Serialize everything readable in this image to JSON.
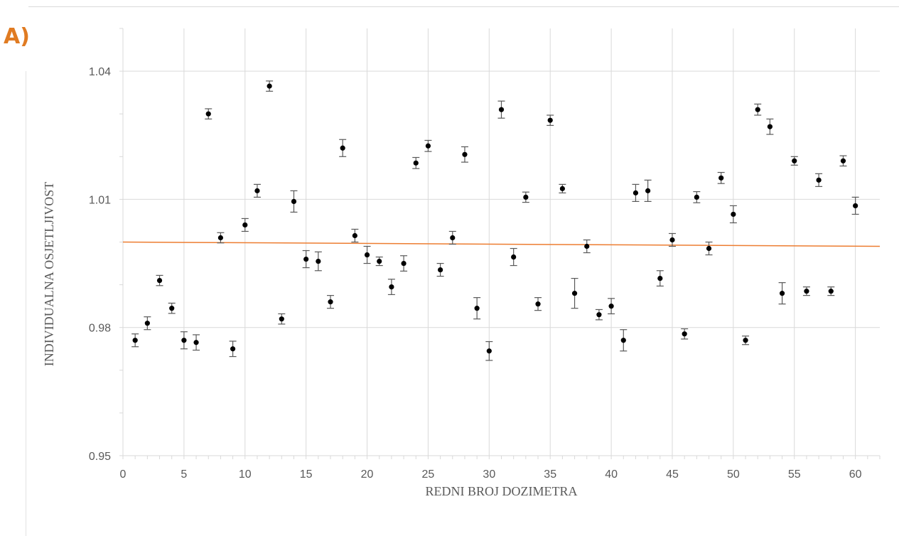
{
  "panel_label": "A)",
  "chart_data": {
    "type": "scatter",
    "title": "",
    "xlabel": "REDNI BROJ DOZIMETRA",
    "ylabel": "INDIVIDUALNA OSJETLJIVOST",
    "xlim": [
      0,
      62
    ],
    "ylim": [
      0.95,
      1.05
    ],
    "xticks": [
      0,
      5,
      10,
      15,
      20,
      25,
      30,
      35,
      40,
      45,
      50,
      55,
      60
    ],
    "yticks": [
      0.95,
      0.98,
      1.01,
      1.04
    ],
    "grid": true,
    "colors": {
      "points": "#000000",
      "trendline": "#ed7d31",
      "grid": "#d9d9d9",
      "errorbar": "#595959"
    },
    "series": [
      {
        "marker": "circle",
        "x": [
          1,
          2,
          3,
          4,
          5,
          6,
          7,
          8,
          9,
          10,
          11,
          12,
          13,
          14,
          15,
          16,
          17,
          18,
          19,
          20,
          21,
          22,
          23,
          24,
          25,
          26,
          27,
          28,
          29,
          30,
          31,
          32,
          33,
          34,
          35,
          36,
          37,
          38,
          39,
          40,
          41,
          42,
          43,
          44,
          45,
          46,
          47,
          48,
          49,
          50,
          51,
          52,
          53,
          54,
          55,
          56,
          57,
          58,
          59,
          60
        ],
        "y": [
          0.977,
          0.981,
          0.991,
          0.9845,
          0.977,
          0.9765,
          1.03,
          1.001,
          0.975,
          1.004,
          1.012,
          1.0365,
          0.982,
          1.0095,
          0.996,
          0.9955,
          0.986,
          1.022,
          1.0015,
          0.997,
          0.9955,
          0.9895,
          0.995,
          1.0185,
          1.0225,
          0.9935,
          1.001,
          1.0205,
          0.9845,
          0.9745,
          1.031,
          0.9965,
          1.0105,
          0.9855,
          1.0285,
          1.0125,
          0.988,
          0.999,
          0.983,
          0.985,
          0.977,
          1.0115,
          1.012,
          0.9915,
          1.0005,
          0.9785,
          1.0105,
          0.9985,
          1.015,
          1.0065,
          0.977,
          1.031,
          1.027,
          0.988,
          1.019,
          0.9885,
          1.0145,
          0.9885,
          1.019,
          1.0085
        ],
        "error": [
          0.0015,
          0.0015,
          0.0012,
          0.0012,
          0.002,
          0.0018,
          0.0012,
          0.0012,
          0.0018,
          0.0015,
          0.0015,
          0.0012,
          0.0012,
          0.0025,
          0.002,
          0.0022,
          0.0015,
          0.002,
          0.0015,
          0.002,
          0.001,
          0.0018,
          0.0018,
          0.0013,
          0.0013,
          0.0015,
          0.0015,
          0.0018,
          0.0025,
          0.0022,
          0.002,
          0.002,
          0.0012,
          0.0015,
          0.0012,
          0.001,
          0.0035,
          0.0015,
          0.0012,
          0.0018,
          0.0025,
          0.002,
          0.0025,
          0.0018,
          0.0015,
          0.0012,
          0.0013,
          0.0015,
          0.0013,
          0.002,
          0.001,
          0.0013,
          0.0018,
          0.0025,
          0.001,
          0.001,
          0.0015,
          0.001,
          0.0012,
          0.002
        ]
      }
    ],
    "trendline": {
      "x": [
        0,
        62
      ],
      "y": [
        1.0,
        0.999
      ]
    }
  }
}
